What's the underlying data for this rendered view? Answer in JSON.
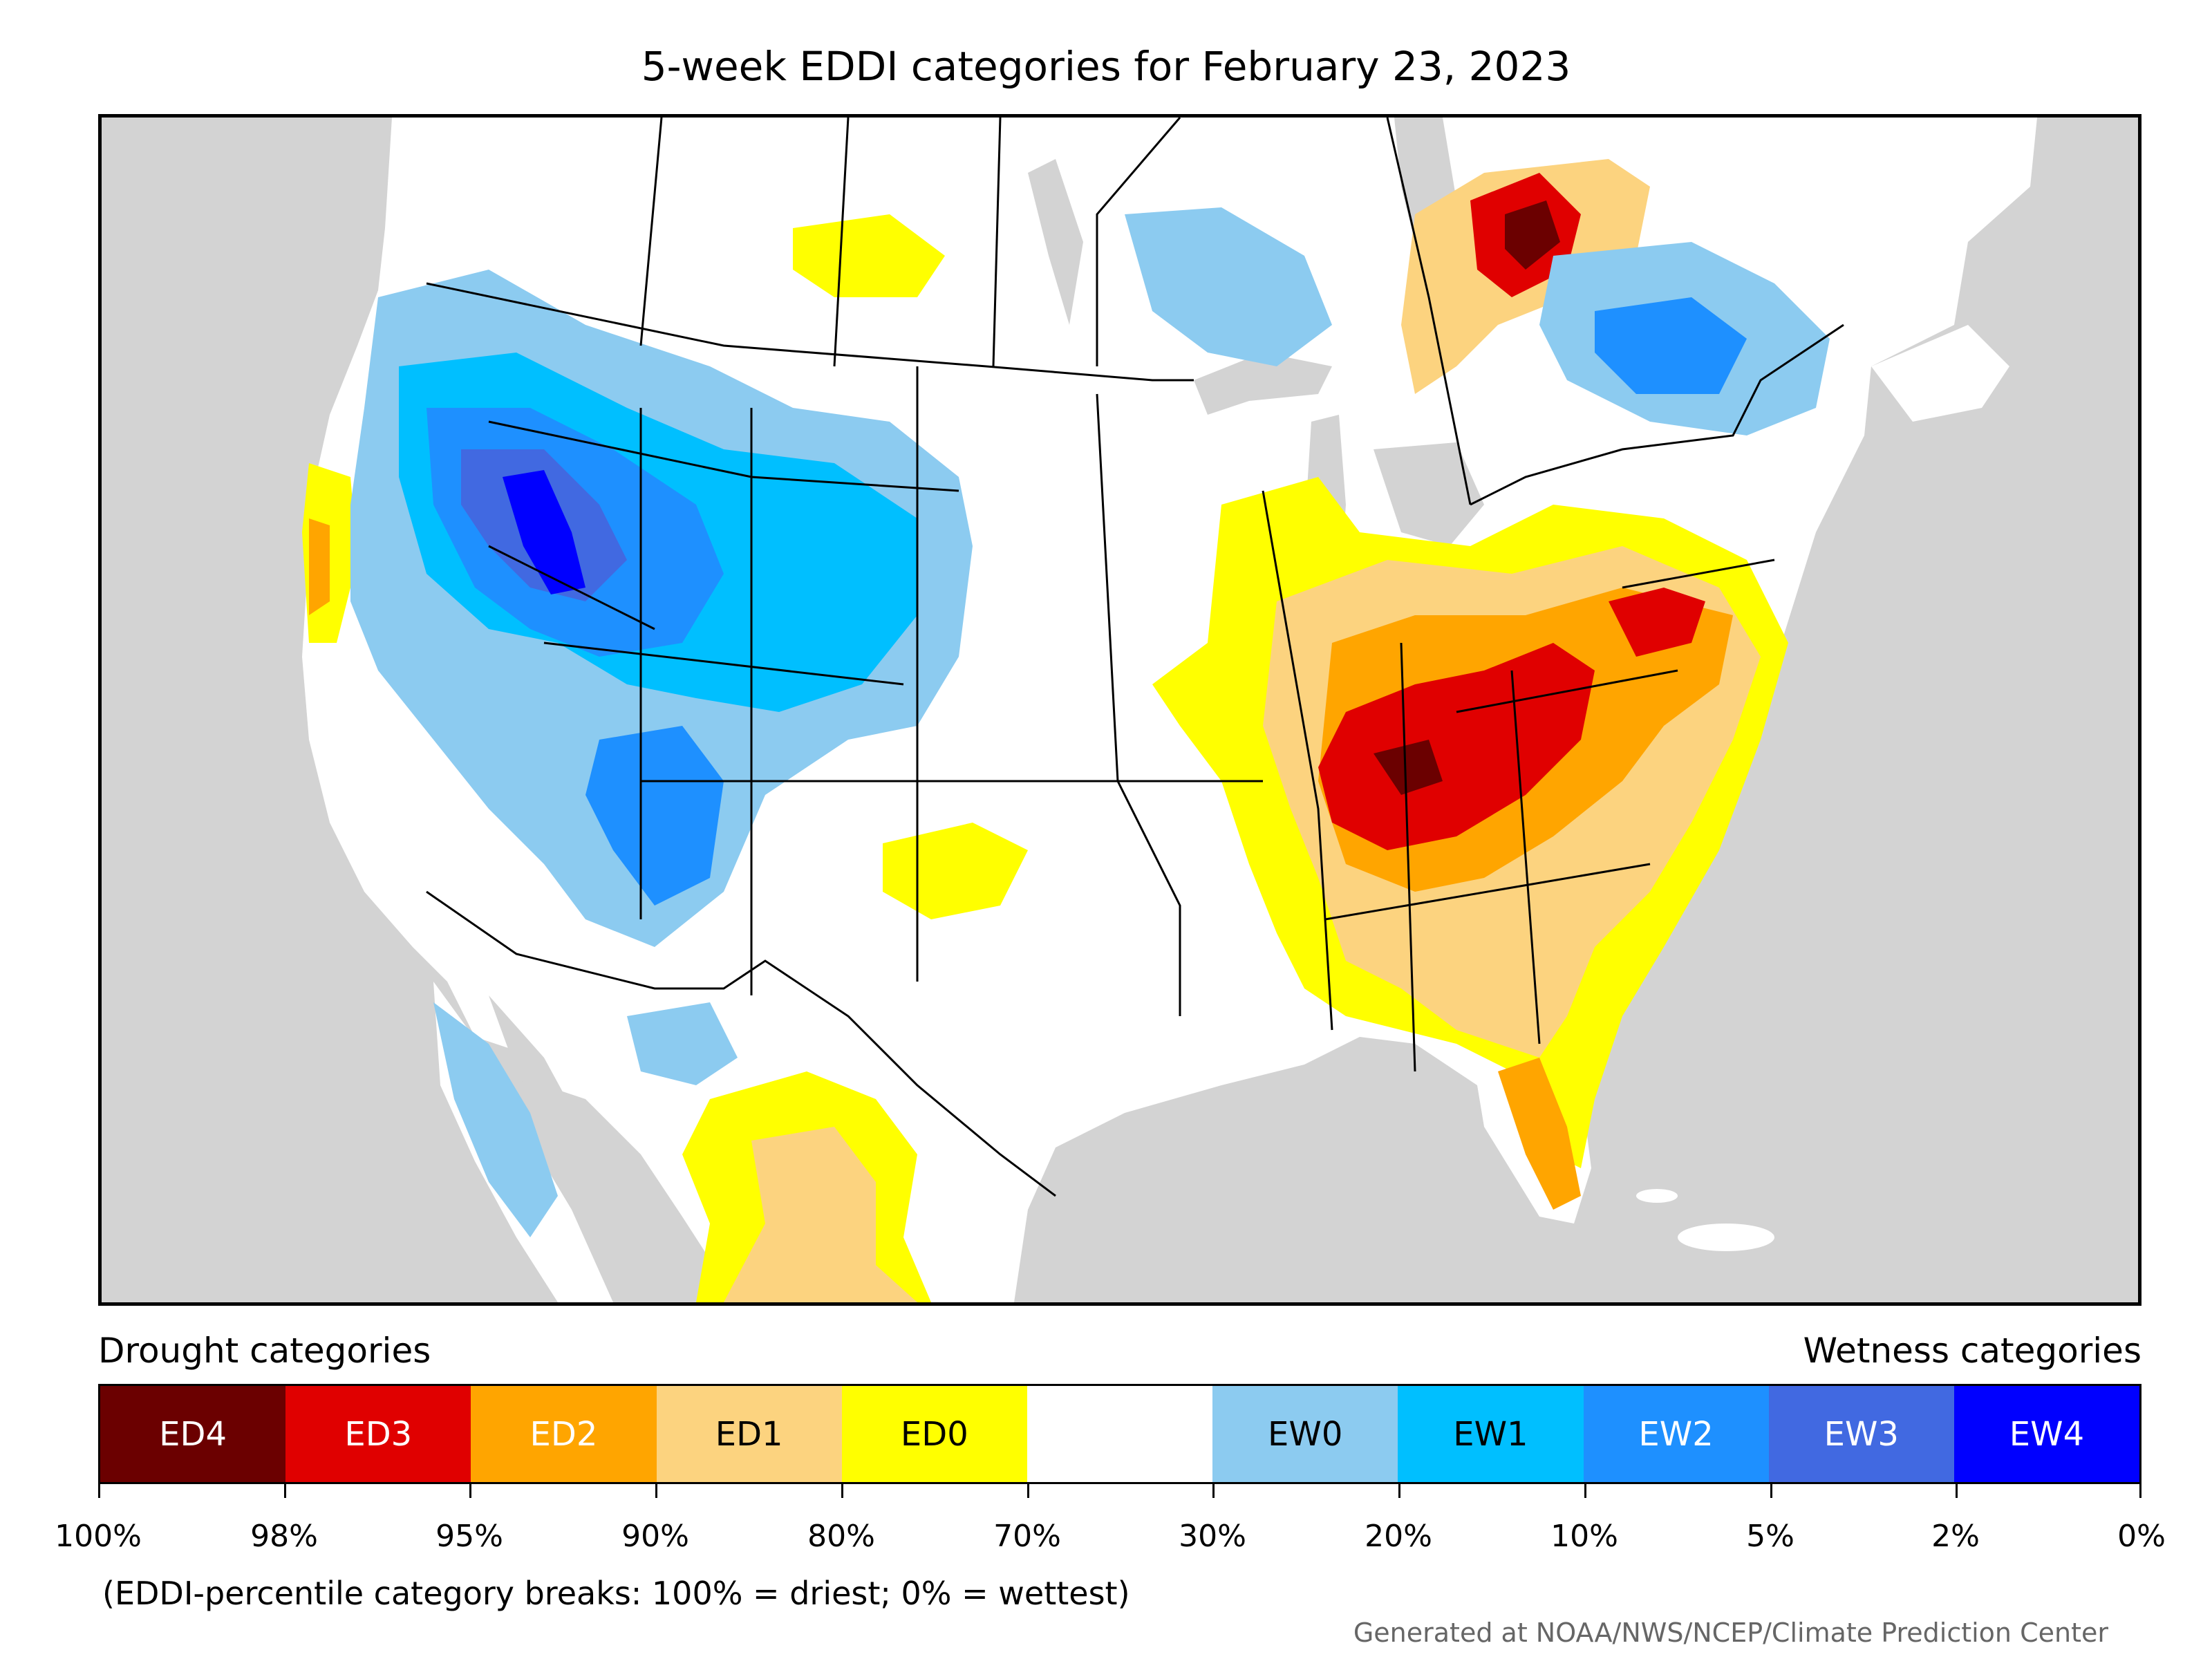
{
  "title": "5-week EDDI categories for February 23, 2023",
  "legend": {
    "drought_heading": "Drought categories",
    "wetness_heading": "Wetness categories",
    "categories": [
      {
        "label": "ED4",
        "color": "#6b0000",
        "text_color": "#ffffff"
      },
      {
        "label": "ED3",
        "color": "#e00000",
        "text_color": "#ffffff"
      },
      {
        "label": "ED2",
        "color": "#ffa500",
        "text_color": "#ffffff"
      },
      {
        "label": "ED1",
        "color": "#fcd37f",
        "text_color": "#000000"
      },
      {
        "label": "ED0",
        "color": "#ffff00",
        "text_color": "#000000"
      },
      {
        "label": "",
        "color": "#ffffff",
        "text_color": "#000000"
      },
      {
        "label": "EW0",
        "color": "#8ccbf0",
        "text_color": "#000000"
      },
      {
        "label": "EW1",
        "color": "#00bfff",
        "text_color": "#000000"
      },
      {
        "label": "EW2",
        "color": "#1e90ff",
        "text_color": "#ffffff"
      },
      {
        "label": "EW3",
        "color": "#4169e1",
        "text_color": "#ffffff"
      },
      {
        "label": "EW4",
        "color": "#0000ff",
        "text_color": "#ffffff"
      }
    ],
    "breaks": [
      "100%",
      "98%",
      "95%",
      "90%",
      "80%",
      "70%",
      "30%",
      "20%",
      "10%",
      "5%",
      "2%",
      "0%"
    ]
  },
  "note": "(EDDI-percentile category breaks: 100% = driest; 0% = wettest)",
  "credit": "Generated at NOAA/NWS/NCEP/Climate Prediction Center",
  "colors": {
    "land": "#ffffff",
    "water": "#d3d3d3",
    "border": "#000000"
  }
}
